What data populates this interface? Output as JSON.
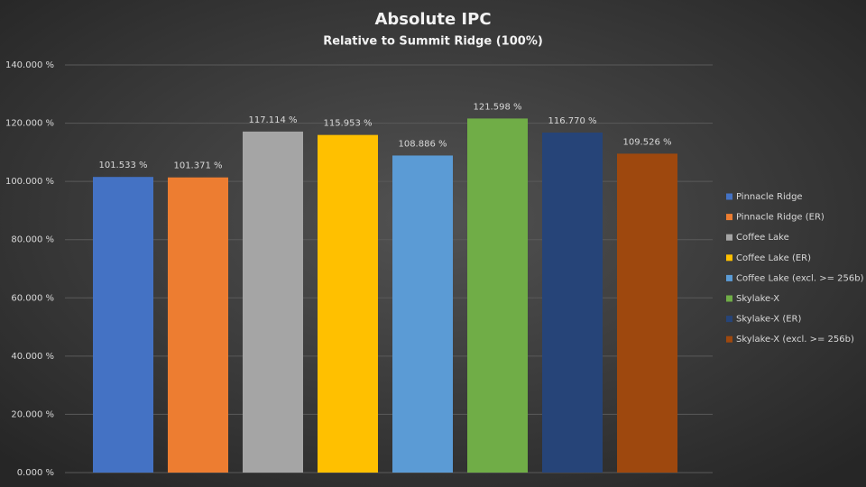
{
  "chart_data": {
    "type": "bar",
    "title": "Absolute  IPC",
    "subtitle": "Relative to Summit Ridge (100%)",
    "series": [
      {
        "name": "Pinnacle Ridge",
        "color": "#4472c4",
        "values": [
          101.533
        ],
        "value_labels": [
          "101.533 %"
        ]
      },
      {
        "name": "Pinnacle Ridge (ER)",
        "color": "#ed7d31",
        "values": [
          101.371
        ],
        "value_labels": [
          "101.371 %"
        ]
      },
      {
        "name": "Coffee Lake",
        "color": "#a5a5a5",
        "values": [
          117.114
        ],
        "value_labels": [
          "117.114 %"
        ]
      },
      {
        "name": "Coffee Lake (ER)",
        "color": "#ffc000",
        "values": [
          115.953
        ],
        "value_labels": [
          "115.953 %"
        ]
      },
      {
        "name": "Coffee Lake (excl. >= 256b)",
        "color": "#5b9bd5",
        "values": [
          108.886
        ],
        "value_labels": [
          "108.886 %"
        ]
      },
      {
        "name": "Skylake-X",
        "color": "#70ad47",
        "values": [
          121.598
        ],
        "value_labels": [
          "121.598 %"
        ]
      },
      {
        "name": "Skylake-X (ER)",
        "color": "#264478",
        "values": [
          116.77
        ],
        "value_labels": [
          "116.770 %"
        ]
      },
      {
        "name": "Skylake-X (excl. >= 256b)",
        "color": "#9e480e",
        "values": [
          109.526
        ],
        "value_labels": [
          "109.526 %"
        ]
      }
    ],
    "ylim": [
      0,
      140
    ],
    "yticks": [
      {
        "value": 0,
        "label": "0.000 %"
      },
      {
        "value": 20,
        "label": "20.000 %"
      },
      {
        "value": 40,
        "label": "40.000 %"
      },
      {
        "value": 60,
        "label": "60.000 %"
      },
      {
        "value": 80,
        "label": "80.000 %"
      },
      {
        "value": 100,
        "label": "100.000 %"
      },
      {
        "value": 120,
        "label": "120.000 %"
      },
      {
        "value": 140,
        "label": "140.000 %"
      }
    ],
    "grid": true,
    "legend": "right"
  }
}
